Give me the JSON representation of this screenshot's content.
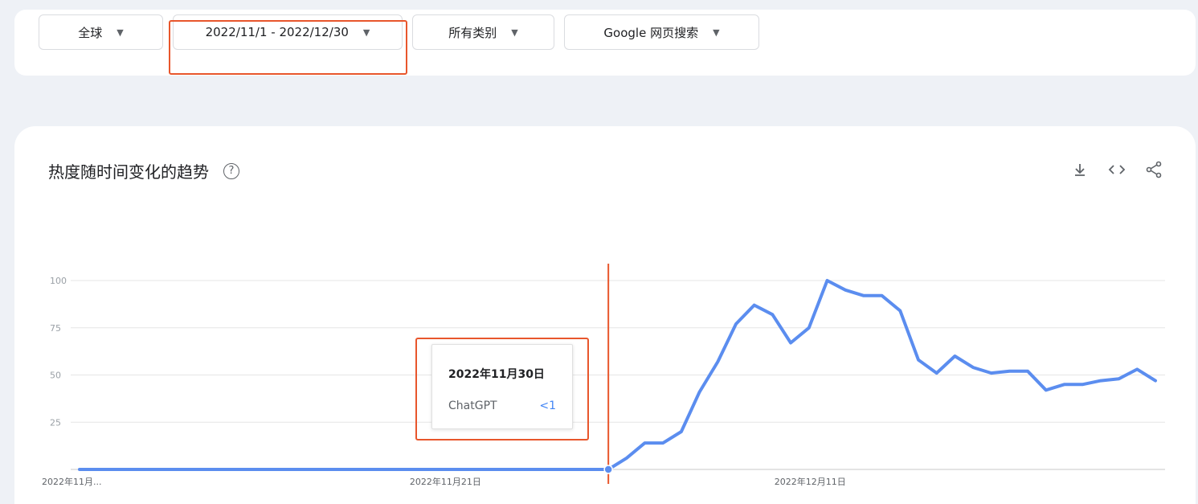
{
  "filters": {
    "region": "全球",
    "date_range": "2022/11/1 - 2022/12/30",
    "category": "所有类别",
    "search_type": "Google 网页搜索"
  },
  "card": {
    "title": "热度随时间变化的趋势",
    "help_icon": "?",
    "actions": [
      "download-icon",
      "embed-icon",
      "share-icon"
    ]
  },
  "tooltip": {
    "date": "2022年11月30日",
    "term": "ChatGPT",
    "value": "<1"
  },
  "colors": {
    "line": "#5b8def",
    "highlight": "#e8562c",
    "grid": "#e6e6e6"
  },
  "chart_data": {
    "type": "line",
    "title": "热度随时间变化的趋势",
    "ylim": [
      0,
      100
    ],
    "y_ticks": [
      25,
      50,
      75,
      100
    ],
    "x_tick_labels": [
      "2022年11月...",
      "2022年11月21日",
      "2022年12月11日"
    ],
    "x_start": "2022-11-01",
    "series": [
      {
        "name": "ChatGPT",
        "x": [
          "2022-11-01",
          "2022-11-02",
          "2022-11-03",
          "2022-11-04",
          "2022-11-05",
          "2022-11-06",
          "2022-11-07",
          "2022-11-08",
          "2022-11-09",
          "2022-11-10",
          "2022-11-11",
          "2022-11-12",
          "2022-11-13",
          "2022-11-14",
          "2022-11-15",
          "2022-11-16",
          "2022-11-17",
          "2022-11-18",
          "2022-11-19",
          "2022-11-20",
          "2022-11-21",
          "2022-11-22",
          "2022-11-23",
          "2022-11-24",
          "2022-11-25",
          "2022-11-26",
          "2022-11-27",
          "2022-11-28",
          "2022-11-29",
          "2022-11-30",
          "2022-12-01",
          "2022-12-02",
          "2022-12-03",
          "2022-12-04",
          "2022-12-05",
          "2022-12-06",
          "2022-12-07",
          "2022-12-08",
          "2022-12-09",
          "2022-12-10",
          "2022-12-11",
          "2022-12-12",
          "2022-12-13",
          "2022-12-14",
          "2022-12-15",
          "2022-12-16",
          "2022-12-17",
          "2022-12-18",
          "2022-12-19",
          "2022-12-20",
          "2022-12-21",
          "2022-12-22",
          "2022-12-23",
          "2022-12-24",
          "2022-12-25",
          "2022-12-26",
          "2022-12-27",
          "2022-12-28",
          "2022-12-29",
          "2022-12-30"
        ],
        "values": [
          0,
          0,
          0,
          0,
          0,
          0,
          0,
          0,
          0,
          0,
          0,
          0,
          0,
          0,
          0,
          0,
          0,
          0,
          0,
          0,
          0,
          0,
          0,
          0,
          0,
          0,
          0,
          0,
          0,
          0,
          6,
          14,
          14,
          20,
          41,
          57,
          77,
          87,
          82,
          67,
          75,
          100,
          95,
          92,
          92,
          84,
          58,
          51,
          60,
          54,
          51,
          52,
          52,
          42,
          45,
          45,
          47,
          48,
          53,
          47
        ]
      }
    ]
  }
}
